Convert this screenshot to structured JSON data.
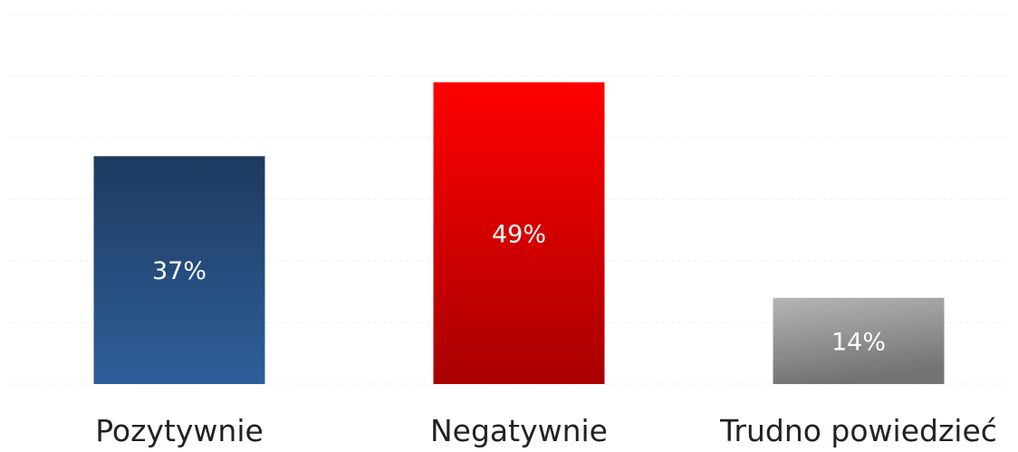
{
  "chart_data": {
    "type": "bar",
    "title": "",
    "xlabel": "",
    "ylabel": "",
    "categories": [
      "Pozytywnie",
      "Negatywnie",
      "Trudno powiedzieć"
    ],
    "values": [
      37,
      49,
      14
    ],
    "value_labels": [
      "37%",
      "49%",
      "14%"
    ],
    "ylim": [
      0,
      60
    ],
    "grid": true,
    "legend": "none",
    "colors": [
      {
        "top": "#1e3a5f",
        "bottom": "#2e5f9a"
      },
      {
        "top": "#ff0000",
        "bottom": "#a80000"
      },
      {
        "top": "#b5b5b5",
        "bottom": "#737373"
      }
    ]
  }
}
